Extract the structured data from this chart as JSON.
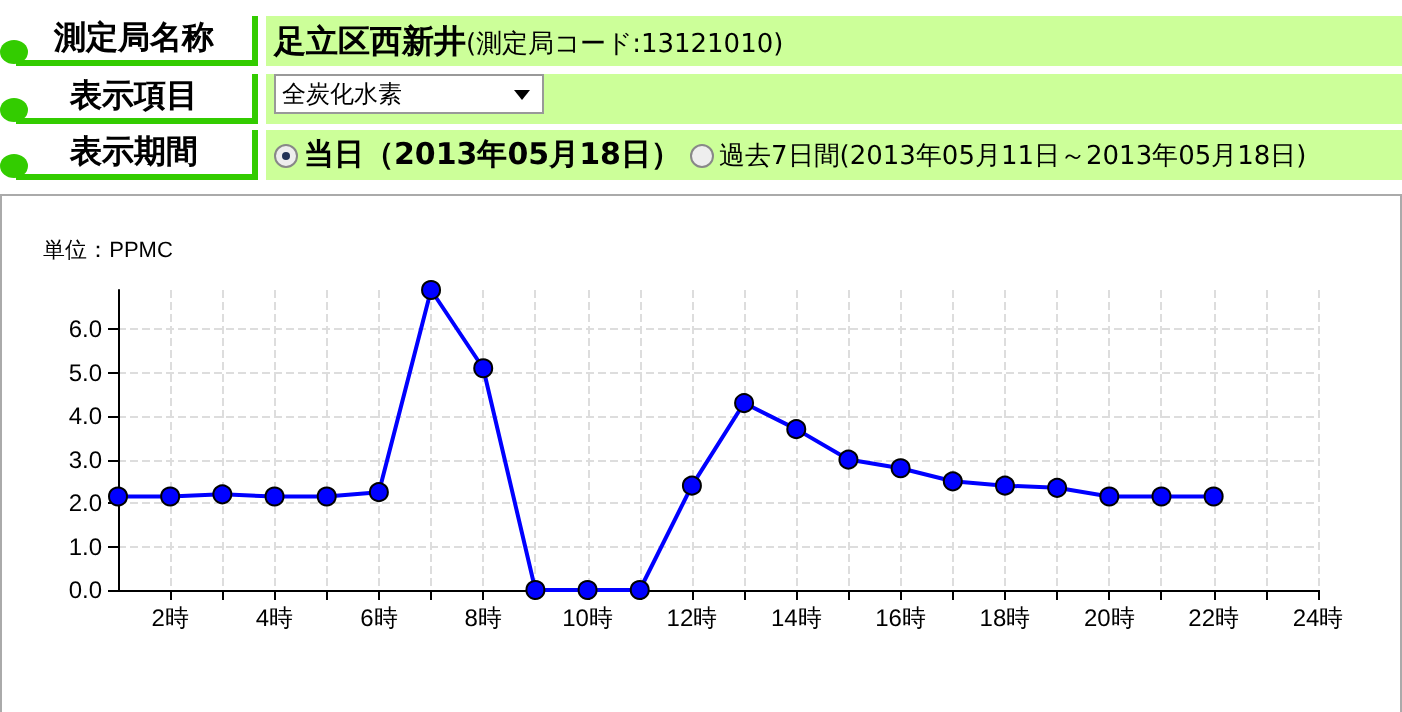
{
  "chart_data": {
    "type": "line",
    "ylabel": "単位：PPMC",
    "annotations": [
      "測定局名称",
      "足立区西新井",
      "(測定局コード:13121010)",
      "表示項目",
      "全炭化水素",
      "表示期間",
      "当日（2013年05月18日）",
      "過去7日間(2013年05月11日～2013年05月18日)"
    ],
    "x": [
      1,
      2,
      3,
      4,
      5,
      6,
      7,
      8,
      9,
      10,
      11,
      12,
      13,
      14,
      15,
      16,
      17,
      18,
      19,
      20,
      21,
      22
    ],
    "series": [
      {
        "color": "#0000ff",
        "values": [
          2.15,
          2.15,
          2.2,
          2.15,
          2.15,
          2.25,
          6.9,
          5.1,
          0,
          0,
          0,
          2.4,
          4.3,
          3.7,
          3.0,
          2.8,
          2.5,
          2.4,
          2.35,
          2.15,
          2.15,
          2.15
        ]
      }
    ],
    "xlim": [
      1,
      24
    ],
    "xticks": [
      {
        "value": 2,
        "label": "2時"
      },
      {
        "value": 3,
        "label": null
      },
      {
        "value": 4,
        "label": "4時"
      },
      {
        "value": 5,
        "label": null
      },
      {
        "value": 6,
        "label": "6時"
      },
      {
        "value": 7,
        "label": null
      },
      {
        "value": 8,
        "label": "8時"
      },
      {
        "value": 9,
        "label": null
      },
      {
        "value": 10,
        "label": "10時"
      },
      {
        "value": 11,
        "label": null
      },
      {
        "value": 12,
        "label": "12時"
      },
      {
        "value": 13,
        "label": null
      },
      {
        "value": 14,
        "label": "14時"
      },
      {
        "value": 15,
        "label": null
      },
      {
        "value": 16,
        "label": "16時"
      },
      {
        "value": 17,
        "label": null
      },
      {
        "value": 18,
        "label": "18時"
      },
      {
        "value": 19,
        "label": null
      },
      {
        "value": 20,
        "label": "20時"
      },
      {
        "value": 21,
        "label": null
      },
      {
        "value": 22,
        "label": "22時"
      },
      {
        "value": 23,
        "label": null
      },
      {
        "value": 24,
        "label": "24時"
      }
    ],
    "ylim": [
      0,
      6.9
    ],
    "yticks": [
      {
        "value": 0,
        "label": "0.0"
      },
      {
        "value": 1,
        "label": "1.0"
      },
      {
        "value": 2,
        "label": "2.0"
      },
      {
        "value": 3,
        "label": "3.0"
      },
      {
        "value": 4,
        "label": "4.0"
      },
      {
        "value": 5,
        "label": "5.0"
      },
      {
        "value": 6,
        "label": "6.0"
      }
    ],
    "grid": true,
    "marker": "circle",
    "line_style": "solid"
  }
}
